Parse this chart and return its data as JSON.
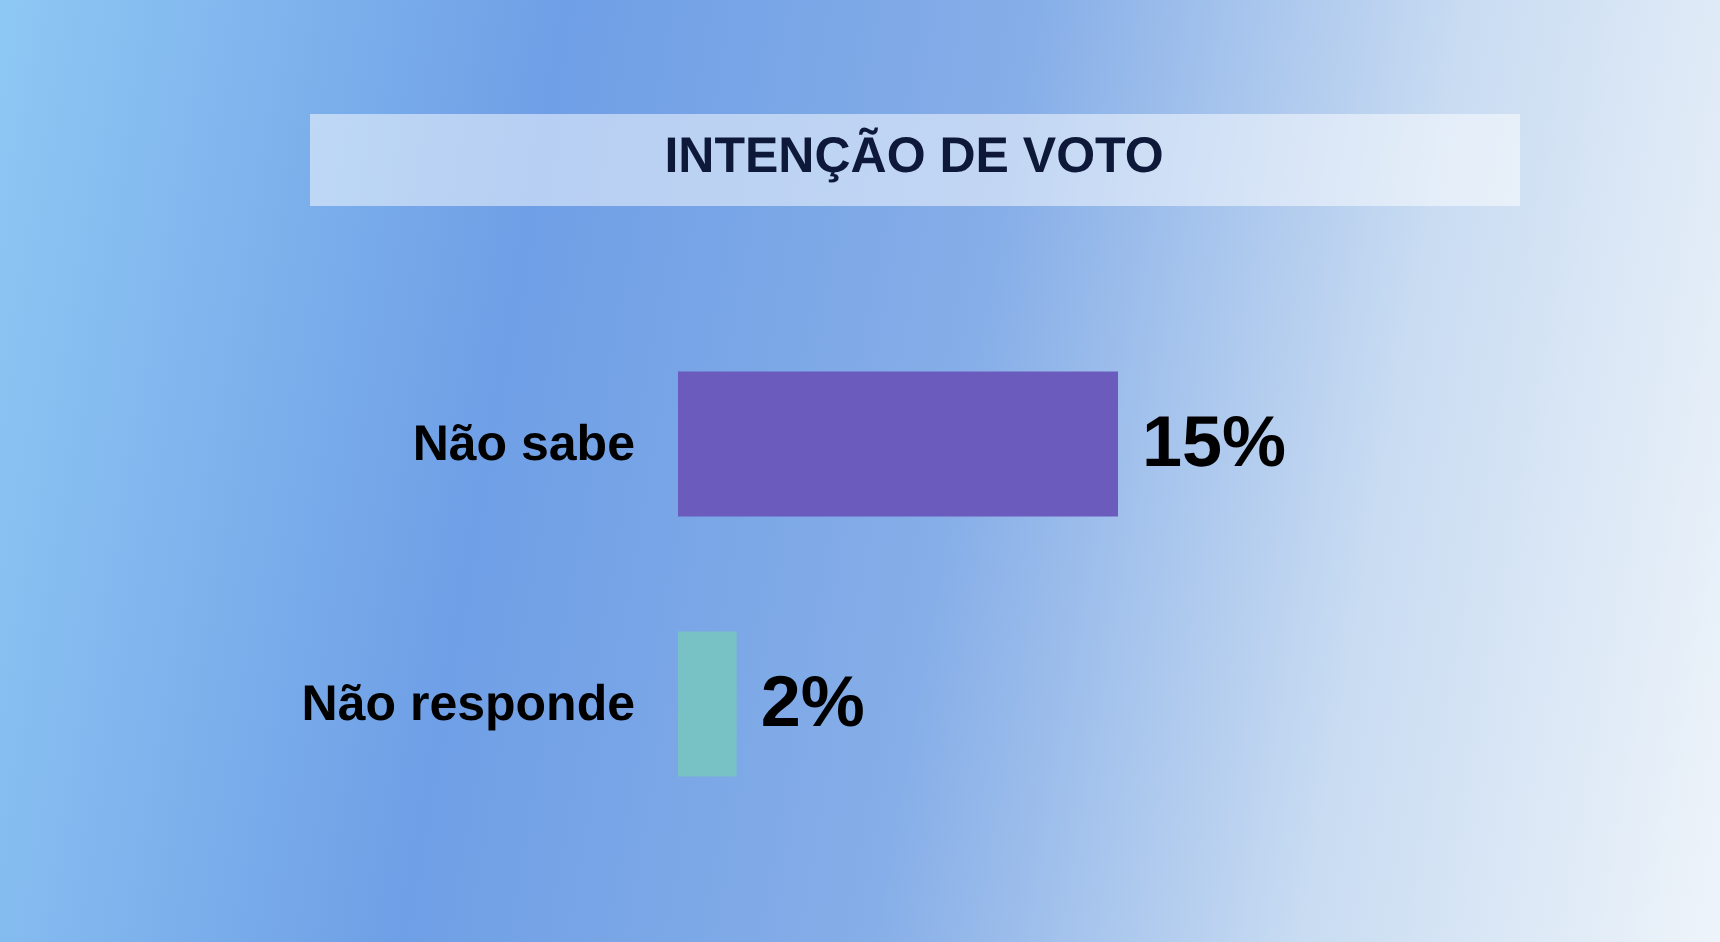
{
  "chart_data": {
    "type": "bar",
    "title": "INTENÇÃO DE VOTO",
    "orientation": "horizontal",
    "categories": [
      "Não sabe",
      "Não responde"
    ],
    "values": [
      15,
      2
    ],
    "colors": [
      "#6b5bbd",
      "#78c2c6"
    ],
    "value_labels": [
      "15%",
      "2%"
    ]
  }
}
